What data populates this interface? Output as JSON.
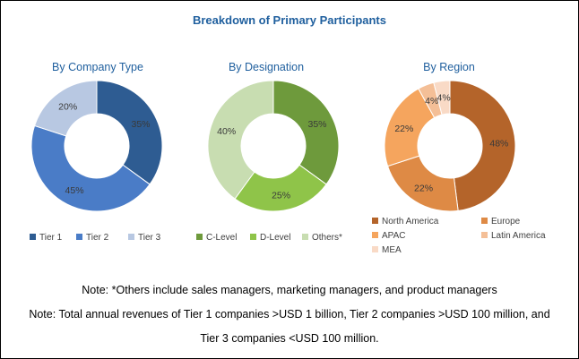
{
  "title": "Breakdown of Primary Participants",
  "notes": {
    "line1": "Note: *Others include sales managers, marketing managers, and product managers",
    "line2": "Note: Total annual revenues of Tier 1 companies >USD 1 billion, Tier 2 companies >USD 100 million, and",
    "line3": "Tier 3 companies <USD 100 million."
  },
  "chart_data": [
    {
      "type": "pie",
      "title": "By Company Type",
      "categories": [
        "Tier 1",
        "Tier 2",
        "Tier 3"
      ],
      "values": [
        35,
        45,
        20
      ],
      "labels": [
        "35%",
        "45%",
        "20%"
      ],
      "colors": [
        "#2e5c92",
        "#4a7cc7",
        "#b8c8e2"
      ],
      "legend": "bottom"
    },
    {
      "type": "pie",
      "title": "By Designation",
      "categories": [
        "C-Level",
        "D-Level",
        "Others*"
      ],
      "values": [
        35,
        25,
        40
      ],
      "labels": [
        "35%",
        "25%",
        "40%"
      ],
      "colors": [
        "#6e9a3c",
        "#8fc449",
        "#c8ddb1"
      ],
      "legend": "bottom"
    },
    {
      "type": "pie",
      "title": "By Region",
      "categories": [
        "North America",
        "Europe",
        "APAC",
        "Latin America",
        "MEA"
      ],
      "values": [
        48,
        22,
        22,
        4,
        4
      ],
      "labels": [
        "48%",
        "22%",
        "22%",
        "4%",
        "4%"
      ],
      "colors": [
        "#b4642a",
        "#de8a45",
        "#f5a55e",
        "#f4bf97",
        "#f9dac6"
      ],
      "legend": "bottom"
    }
  ]
}
